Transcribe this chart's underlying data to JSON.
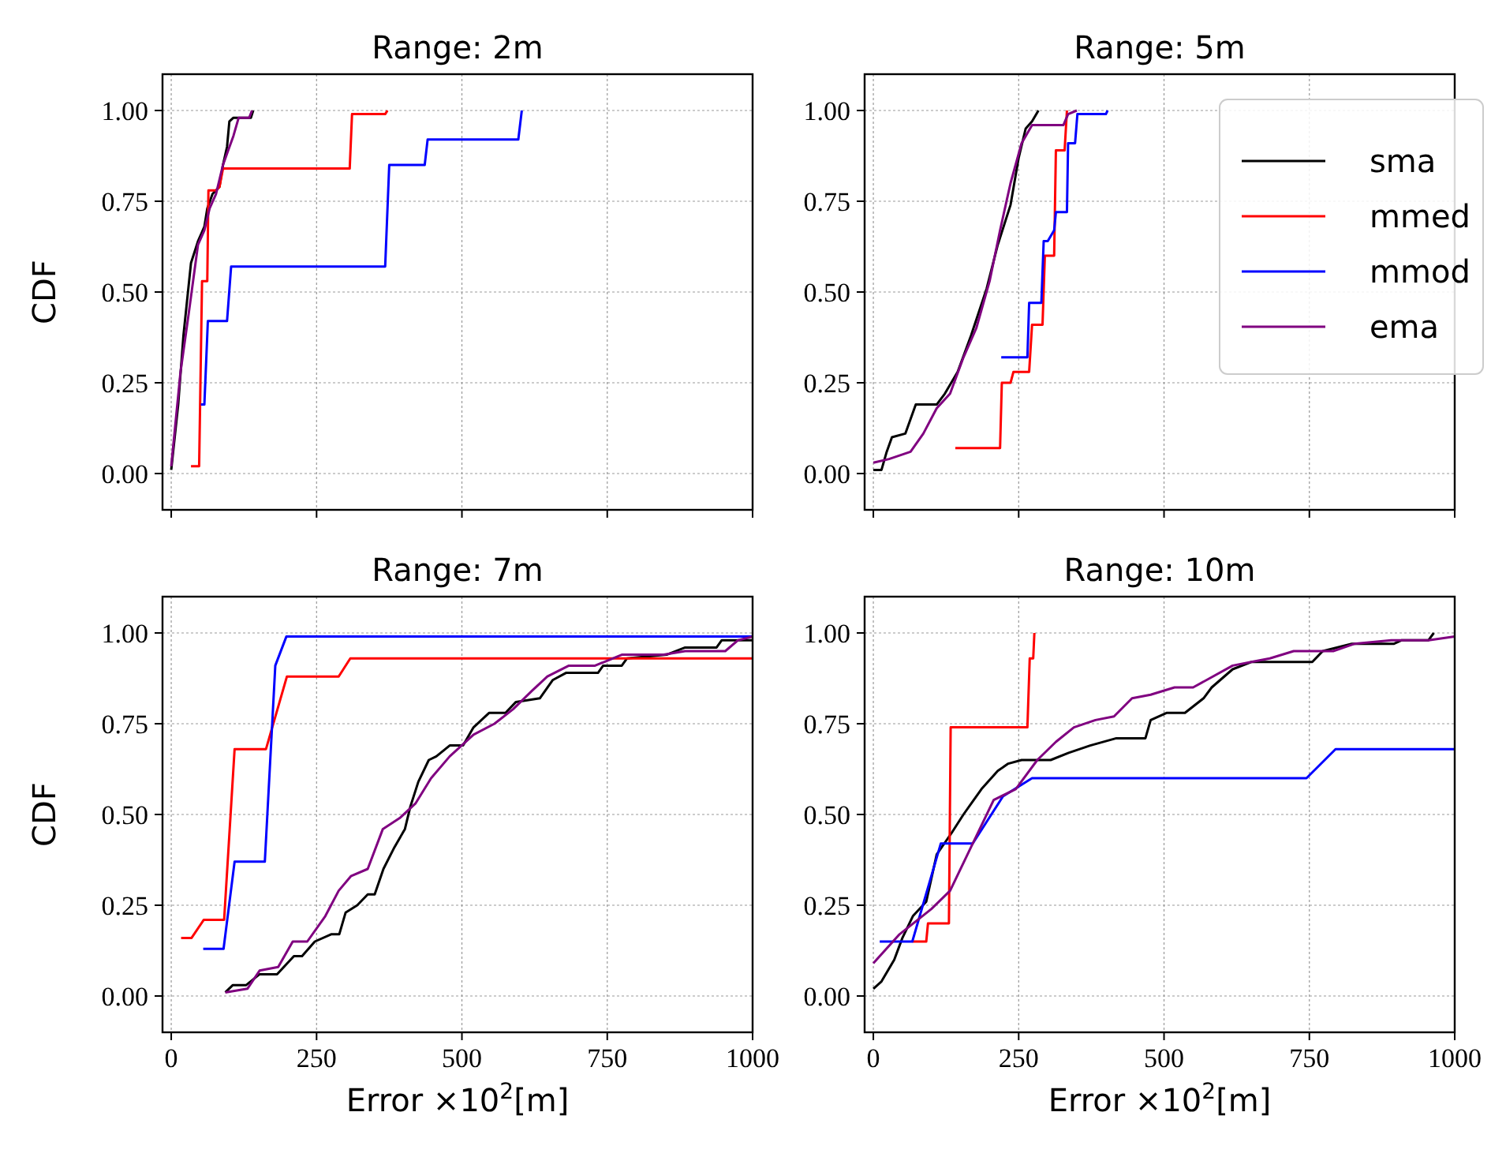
{
  "chart_data": [
    {
      "type": "line",
      "title": "Range: 2m",
      "ylabel": "CDF",
      "xlim": [
        -15,
        1000
      ],
      "ylim": [
        -0.1,
        1.1
      ],
      "xticks": [
        0,
        250,
        500,
        750,
        1000
      ],
      "yticks": [
        {
          "value": 0,
          "label": "0.00"
        },
        {
          "value": 0.25,
          "label": "0.25"
        },
        {
          "value": 0.5,
          "label": "0.50"
        },
        {
          "value": 0.75,
          "label": "0.75"
        },
        {
          "value": 1,
          "label": "1.00"
        }
      ],
      "grid": true,
      "tick_labels": "y",
      "series": [
        {
          "color": "#000000",
          "x": [
            0,
            12,
            21,
            34,
            46,
            57,
            62,
            71,
            83,
            89,
            96,
            100,
            107,
            137,
            141
          ],
          "values": [
            0.01,
            0.19,
            0.38,
            0.58,
            0.64,
            0.68,
            0.73,
            0.77,
            0.79,
            0.85,
            0.9,
            0.97,
            0.98,
            0.98,
            1.0
          ]
        },
        {
          "color": "#ff0000",
          "x": [
            34,
            48,
            53,
            62,
            64,
            77,
            83,
            89,
            307,
            311,
            368,
            372
          ],
          "values": [
            0.02,
            0.02,
            0.53,
            0.53,
            0.78,
            0.78,
            0.79,
            0.84,
            0.84,
            0.99,
            0.99,
            1.0
          ]
        },
        {
          "color": "#0000ff",
          "x": [
            51,
            57,
            63,
            96,
            103,
            368,
            375,
            436,
            441,
            597,
            603
          ],
          "values": [
            0.19,
            0.19,
            0.42,
            0.42,
            0.57,
            0.57,
            0.85,
            0.85,
            0.92,
            0.92,
            1.0
          ]
        },
        {
          "color": "#800080",
          "x": [
            0,
            16,
            30,
            46,
            57,
            66,
            77,
            89,
            98,
            107,
            116,
            134,
            139
          ],
          "values": [
            0.02,
            0.28,
            0.44,
            0.63,
            0.67,
            0.73,
            0.77,
            0.85,
            0.89,
            0.93,
            0.98,
            0.98,
            1.0
          ]
        }
      ]
    },
    {
      "type": "line",
      "title": "Range: 5m",
      "xlim": [
        -15,
        1000
      ],
      "ylim": [
        -0.1,
        1.1
      ],
      "xticks": [
        0,
        250,
        500,
        750,
        1000
      ],
      "yticks": [
        {
          "value": 0,
          "label": "0.00"
        },
        {
          "value": 0.25,
          "label": "0.25"
        },
        {
          "value": 0.5,
          "label": "0.50"
        },
        {
          "value": 0.75,
          "label": "0.75"
        },
        {
          "value": 1,
          "label": "1.00"
        }
      ],
      "grid": true,
      "tick_labels": "y",
      "legend": "right",
      "series": [
        {
          "name": "sma",
          "color": "#000000",
          "x": [
            0,
            14,
            23,
            32,
            55,
            73,
            109,
            123,
            145,
            168,
            195,
            214,
            236,
            250,
            262,
            273,
            284
          ],
          "values": [
            0.01,
            0.01,
            0.06,
            0.1,
            0.11,
            0.19,
            0.19,
            0.22,
            0.28,
            0.38,
            0.51,
            0.63,
            0.74,
            0.87,
            0.95,
            0.97,
            1.0
          ]
        },
        {
          "name": "mmed",
          "color": "#ff0000",
          "x": [
            141,
            218,
            221,
            236,
            241,
            268,
            273,
            291,
            295,
            311,
            314,
            329,
            333
          ],
          "values": [
            0.07,
            0.07,
            0.25,
            0.25,
            0.28,
            0.28,
            0.41,
            0.41,
            0.6,
            0.6,
            0.89,
            0.89,
            1.0
          ]
        },
        {
          "name": "mmod",
          "color": "#0000ff",
          "x": [
            220,
            265,
            268,
            289,
            293,
            300,
            311,
            314,
            333,
            335,
            347,
            351,
            400,
            403
          ],
          "values": [
            0.32,
            0.32,
            0.47,
            0.47,
            0.64,
            0.64,
            0.67,
            0.72,
            0.72,
            0.91,
            0.91,
            0.99,
            0.99,
            1.0
          ]
        },
        {
          "name": "ema",
          "color": "#800080",
          "x": [
            0,
            27,
            64,
            86,
            109,
            132,
            155,
            177,
            200,
            218,
            236,
            255,
            273,
            327,
            335,
            350
          ],
          "values": [
            0.03,
            0.04,
            0.06,
            0.11,
            0.18,
            0.22,
            0.32,
            0.4,
            0.53,
            0.67,
            0.8,
            0.91,
            0.96,
            0.96,
            0.99,
            1.0
          ]
        }
      ]
    },
    {
      "type": "line",
      "title": "Range: 7m",
      "xlabel": "Error ×10$^{2}$[m]",
      "ylabel": "CDF",
      "xlim": [
        -15,
        1000
      ],
      "ylim": [
        -0.1,
        1.1
      ],
      "xticks": [
        0,
        250,
        500,
        750,
        1000
      ],
      "yticks": [
        {
          "value": 0,
          "label": "0.00"
        },
        {
          "value": 0.25,
          "label": "0.25"
        },
        {
          "value": 0.5,
          "label": "0.50"
        },
        {
          "value": 0.75,
          "label": "0.75"
        },
        {
          "value": 1,
          "label": "1.00"
        }
      ],
      "grid": true,
      "series": [
        {
          "color": "#000000",
          "x": [
            93,
            106,
            129,
            152,
            182,
            211,
            225,
            247,
            275,
            289,
            300,
            320,
            338,
            350,
            365,
            384,
            402,
            411,
            425,
            443,
            456,
            479,
            502,
            520,
            547,
            575,
            593,
            634,
            656,
            679,
            734,
            743,
            775,
            784,
            852,
            884,
            938,
            947,
            1000
          ],
          "values": [
            0.01,
            0.03,
            0.03,
            0.06,
            0.06,
            0.11,
            0.11,
            0.15,
            0.17,
            0.17,
            0.23,
            0.25,
            0.28,
            0.28,
            0.35,
            0.41,
            0.46,
            0.52,
            0.59,
            0.65,
            0.66,
            0.69,
            0.69,
            0.74,
            0.78,
            0.78,
            0.81,
            0.82,
            0.87,
            0.89,
            0.89,
            0.91,
            0.91,
            0.93,
            0.94,
            0.96,
            0.96,
            0.98,
            0.98
          ]
        },
        {
          "color": "#ff0000",
          "x": [
            17,
            35,
            56,
            91,
            109,
            163,
            199,
            288,
            308,
            1000
          ],
          "values": [
            0.16,
            0.16,
            0.21,
            0.21,
            0.68,
            0.68,
            0.88,
            0.88,
            0.93,
            0.93
          ]
        },
        {
          "color": "#0000ff",
          "x": [
            55,
            90,
            109,
            161,
            179,
            198,
            1000
          ],
          "values": [
            0.13,
            0.13,
            0.37,
            0.37,
            0.91,
            0.99,
            0.99
          ]
        },
        {
          "color": "#800080",
          "x": [
            93,
            131,
            152,
            184,
            209,
            234,
            265,
            288,
            309,
            338,
            364,
            393,
            420,
            447,
            479,
            520,
            556,
            588,
            620,
            647,
            684,
            729,
            775,
            847,
            884,
            953,
            975,
            1000
          ],
          "values": [
            0.01,
            0.02,
            0.07,
            0.08,
            0.15,
            0.15,
            0.22,
            0.29,
            0.33,
            0.35,
            0.46,
            0.49,
            0.53,
            0.6,
            0.66,
            0.72,
            0.75,
            0.79,
            0.84,
            0.88,
            0.91,
            0.91,
            0.94,
            0.94,
            0.95,
            0.95,
            0.98,
            0.99
          ]
        }
      ]
    },
    {
      "type": "line",
      "title": "Range: 10m",
      "xlabel": "Error ×10$^{2}$[m]",
      "xlim": [
        -15,
        1000
      ],
      "ylim": [
        -0.1,
        1.1
      ],
      "xticks": [
        0,
        250,
        500,
        750,
        1000
      ],
      "yticks": [
        {
          "value": 0,
          "label": "0.00"
        },
        {
          "value": 0.25,
          "label": "0.25"
        },
        {
          "value": 0.5,
          "label": "0.50"
        },
        {
          "value": 0.75,
          "label": "0.75"
        },
        {
          "value": 1,
          "label": "1.00"
        }
      ],
      "grid": true,
      "series": [
        {
          "color": "#000000",
          "x": [
            0,
            14,
            36,
            50,
            68,
            91,
            109,
            135,
            155,
            186,
            214,
            232,
            255,
            305,
            336,
            373,
            418,
            468,
            477,
            505,
            536,
            568,
            582,
            618,
            650,
            755,
            773,
            823,
            895,
            909,
            955,
            964
          ],
          "values": [
            0.02,
            0.04,
            0.1,
            0.16,
            0.22,
            0.26,
            0.39,
            0.45,
            0.5,
            0.57,
            0.62,
            0.64,
            0.65,
            0.65,
            0.67,
            0.69,
            0.71,
            0.71,
            0.76,
            0.78,
            0.78,
            0.82,
            0.85,
            0.9,
            0.92,
            0.92,
            0.95,
            0.97,
            0.97,
            0.98,
            0.98,
            1.0
          ]
        },
        {
          "color": "#ff0000",
          "x": [
            67,
            91,
            94,
            130,
            133,
            265,
            269,
            275,
            277
          ],
          "values": [
            0.15,
            0.15,
            0.2,
            0.2,
            0.74,
            0.74,
            0.93,
            0.93,
            1.0
          ]
        },
        {
          "color": "#0000ff",
          "x": [
            11,
            67,
            116,
            171,
            223,
            273,
            745,
            795,
            1000
          ],
          "values": [
            0.15,
            0.15,
            0.42,
            0.42,
            0.55,
            0.6,
            0.6,
            0.68,
            0.68
          ]
        },
        {
          "color": "#800080",
          "x": [
            0,
            45,
            100,
            132,
            168,
            207,
            245,
            282,
            314,
            345,
            382,
            414,
            445,
            477,
            518,
            550,
            618,
            650,
            682,
            723,
            791,
            827,
            891,
            955,
            1000
          ],
          "values": [
            0.09,
            0.17,
            0.24,
            0.29,
            0.41,
            0.54,
            0.57,
            0.65,
            0.7,
            0.74,
            0.76,
            0.77,
            0.82,
            0.83,
            0.85,
            0.85,
            0.91,
            0.92,
            0.93,
            0.95,
            0.95,
            0.97,
            0.98,
            0.98,
            0.99
          ]
        }
      ]
    }
  ]
}
